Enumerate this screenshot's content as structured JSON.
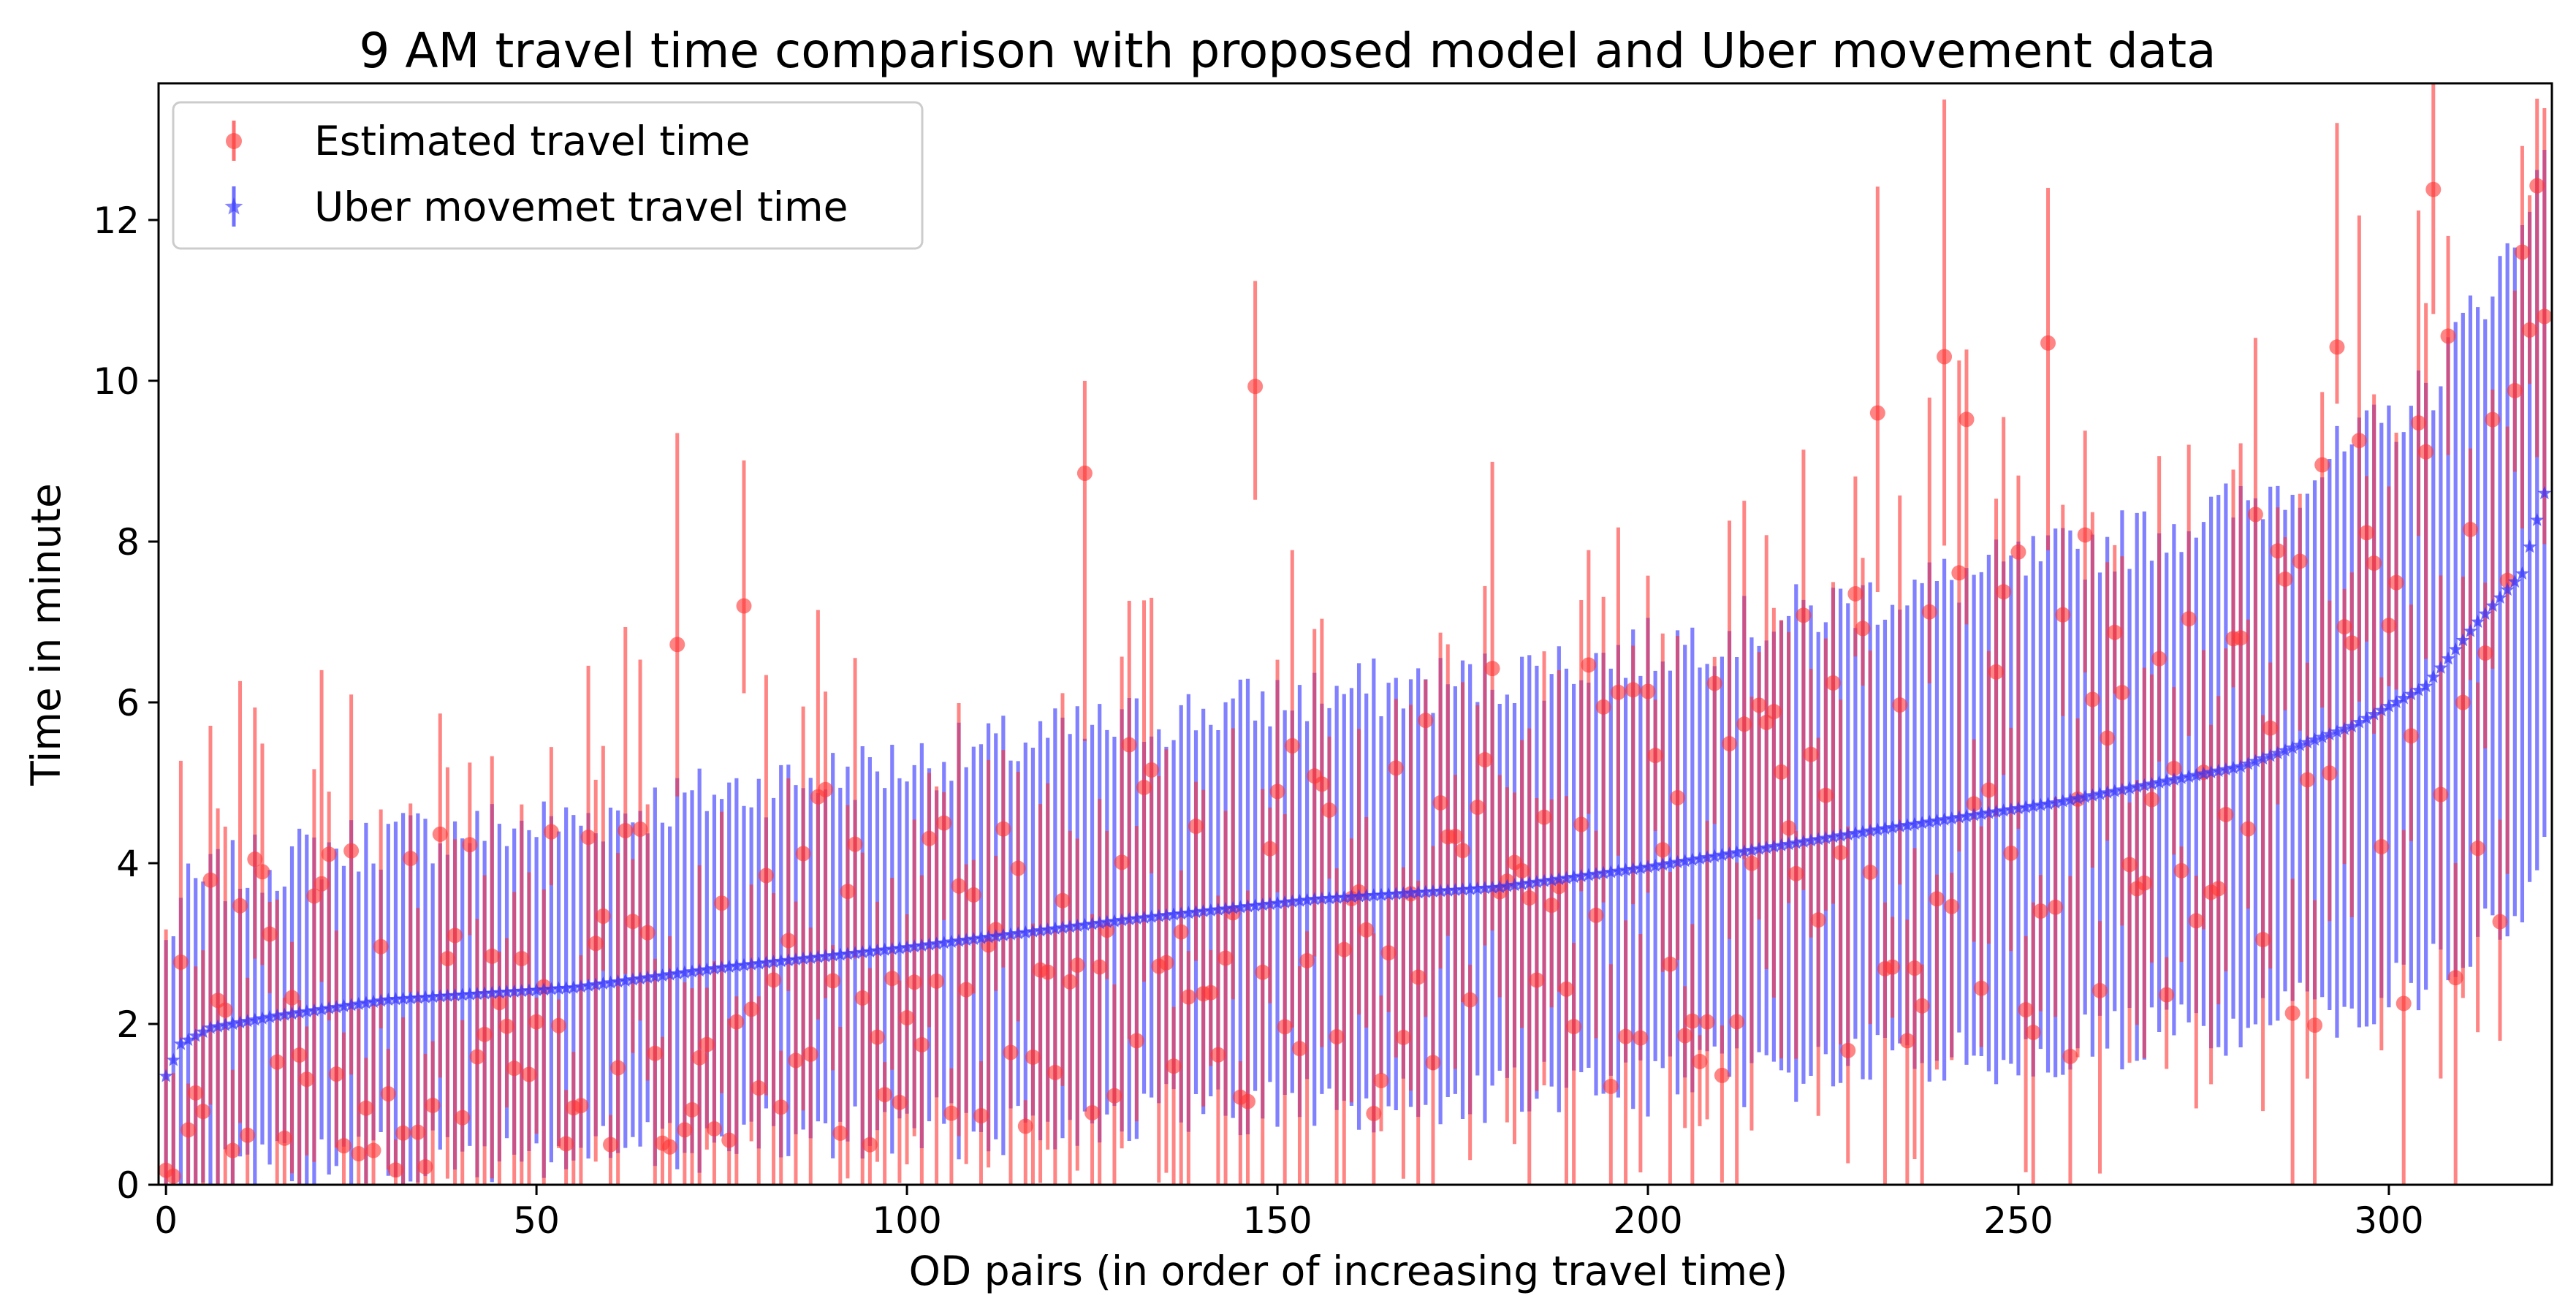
{
  "chart_data": {
    "type": "scatter",
    "title": "9 AM  travel time comparison with proposed model and Uber movement data",
    "xlabel": "OD pairs (in order of increasing travel time)",
    "ylabel": "Time in minute",
    "xlim": [
      -1,
      322
    ],
    "ylim": [
      0,
      13.7
    ],
    "xticks": [
      0,
      50,
      100,
      150,
      200,
      250,
      300
    ],
    "yticks": [
      0,
      2,
      4,
      6,
      8,
      10,
      12
    ],
    "xtick_labels": [
      "0",
      "50",
      "100",
      "150",
      "200",
      "250",
      "300"
    ],
    "ytick_labels": [
      "0",
      "2",
      "4",
      "6",
      "8",
      "10",
      "12"
    ],
    "legend_position": "upper-left",
    "series": [
      {
        "name": "Estimated travel time",
        "marker": "circle",
        "color": "#ff3333",
        "n": 322,
        "seed": 7,
        "highlight_points": [
          {
            "x": 0,
            "y": 0.18
          },
          {
            "x": 69,
            "y": 6.72
          },
          {
            "x": 78,
            "y": 7.2
          },
          {
            "x": 124,
            "y": 8.85
          },
          {
            "x": 147,
            "y": 9.93
          },
          {
            "x": 231,
            "y": 9.6
          },
          {
            "x": 240,
            "y": 10.3
          },
          {
            "x": 243,
            "y": 9.52
          },
          {
            "x": 254,
            "y": 10.47
          },
          {
            "x": 293,
            "y": 10.42
          },
          {
            "x": 306,
            "y": 12.38
          },
          {
            "x": 318,
            "y": 11.6
          },
          {
            "x": 321,
            "y": 10.8
          }
        ]
      },
      {
        "name": "Uber movemet travel time",
        "marker": "star",
        "color": "#3333ff",
        "n": 322,
        "trend_points": [
          {
            "x": 0,
            "y": 1.35
          },
          {
            "x": 2,
            "y": 1.75
          },
          {
            "x": 6,
            "y": 1.95
          },
          {
            "x": 15,
            "y": 2.1
          },
          {
            "x": 30,
            "y": 2.3
          },
          {
            "x": 55,
            "y": 2.45
          },
          {
            "x": 75,
            "y": 2.7
          },
          {
            "x": 100,
            "y": 2.95
          },
          {
            "x": 130,
            "y": 3.3
          },
          {
            "x": 155,
            "y": 3.55
          },
          {
            "x": 180,
            "y": 3.7
          },
          {
            "x": 200,
            "y": 3.95
          },
          {
            "x": 230,
            "y": 4.4
          },
          {
            "x": 255,
            "y": 4.75
          },
          {
            "x": 280,
            "y": 5.2
          },
          {
            "x": 295,
            "y": 5.7
          },
          {
            "x": 305,
            "y": 6.2
          },
          {
            "x": 312,
            "y": 7.0
          },
          {
            "x": 318,
            "y": 7.6
          },
          {
            "x": 321,
            "y": 8.6
          }
        ]
      }
    ]
  }
}
